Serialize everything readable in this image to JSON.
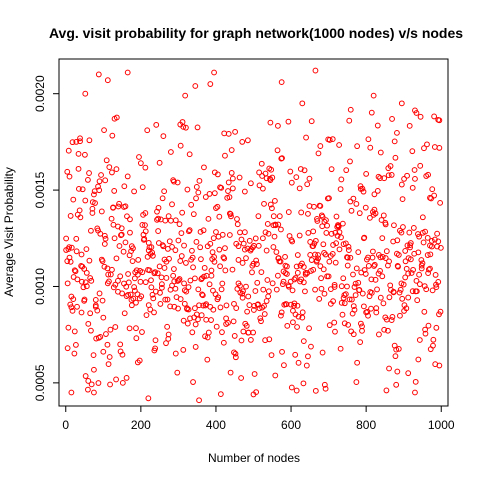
{
  "chart_data": {
    "type": "scatter",
    "title": "Avg. visit probability for graph network(1000 nodes) v/s nodes",
    "xlabel": "Number of nodes",
    "ylabel": "Average Visit Probability",
    "xlim": [
      -18,
      1018
    ],
    "ylim": [
      0.00038,
      0.00218
    ],
    "xticks": [
      0,
      200,
      400,
      600,
      800,
      1000
    ],
    "xtick_labels": [
      "0",
      "200",
      "400",
      "600",
      "800",
      "1000"
    ],
    "yticks": [
      0.0005,
      0.001,
      0.0015,
      0.002
    ],
    "ytick_labels": [
      "0.0005",
      "0.0010",
      "0.0015",
      "0.0020"
    ],
    "grid": false,
    "marker": "open-circle",
    "point_color": "#ff0000",
    "n_points": 1000,
    "sample_points": [
      [
        5,
        0.00068
      ],
      [
        10,
        0.00157
      ],
      [
        15,
        0.00045
      ],
      [
        28,
        0.00175
      ],
      [
        52,
        0.002
      ],
      [
        60,
        0.00051
      ],
      [
        75,
        0.00045
      ],
      [
        88,
        0.0021
      ],
      [
        112,
        0.00207
      ],
      [
        130,
        0.00187
      ],
      [
        165,
        0.00211
      ],
      [
        220,
        0.00042
      ],
      [
        260,
        0.00178
      ],
      [
        305,
        0.00184
      ],
      [
        318,
        0.00199
      ],
      [
        345,
        0.00204
      ],
      [
        355,
        0.00041
      ],
      [
        385,
        0.00205
      ],
      [
        395,
        0.00211
      ],
      [
        470,
        0.00175
      ],
      [
        500,
        0.00044
      ],
      [
        545,
        0.00185
      ],
      [
        575,
        0.00206
      ],
      [
        615,
        0.00046
      ],
      [
        630,
        0.00195
      ],
      [
        665,
        0.00212
      ],
      [
        690,
        0.00049
      ],
      [
        755,
        0.00186
      ],
      [
        820,
        0.00199
      ],
      [
        880,
        0.00049
      ],
      [
        895,
        0.00195
      ],
      [
        930,
        0.00045
      ],
      [
        945,
        0.00188
      ],
      [
        970,
        0.00146
      ],
      [
        985,
        0.00106
      ],
      [
        995,
        0.00059
      ]
    ]
  }
}
